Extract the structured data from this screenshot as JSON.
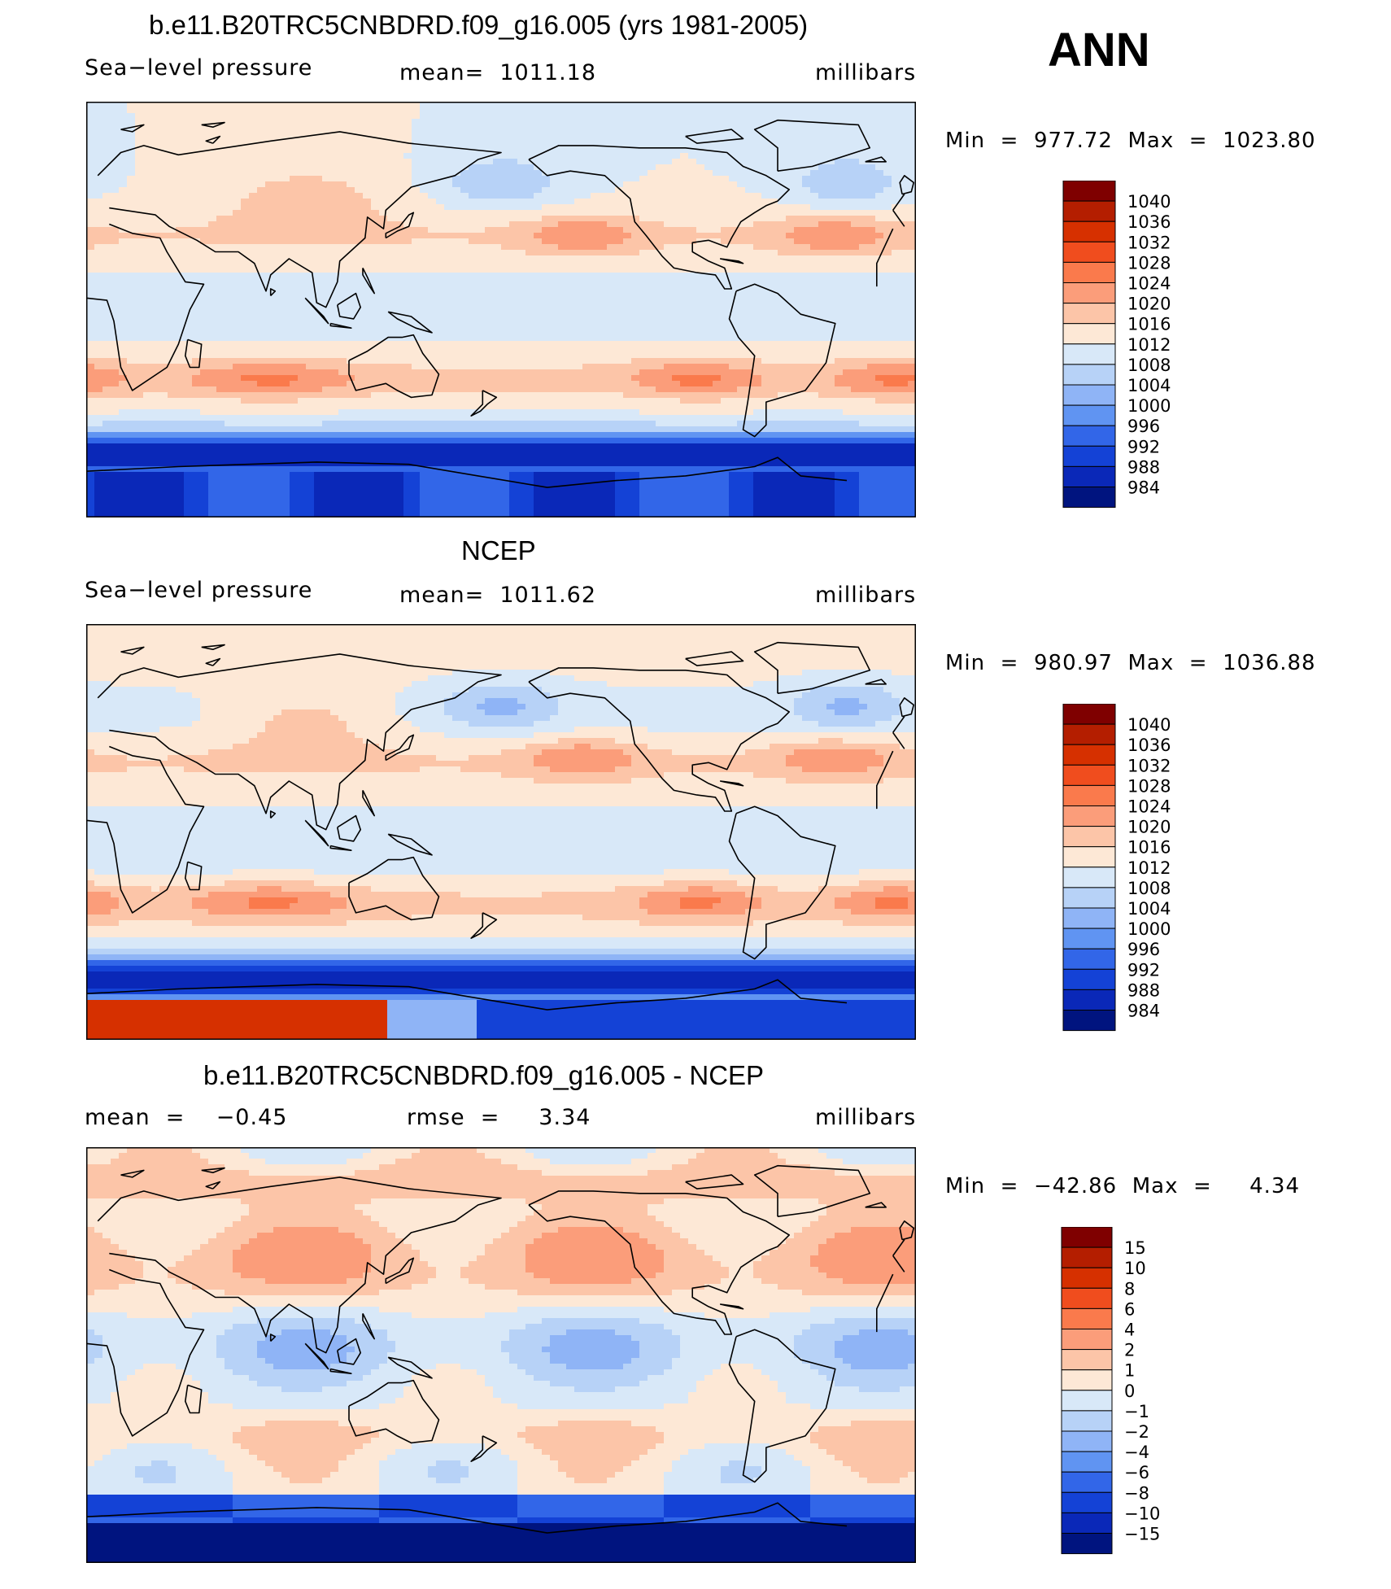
{
  "season": "ANN",
  "colors": {
    "coastline": "#000000",
    "frame": "#000000"
  },
  "panels": [
    {
      "id": "model",
      "title": "b.e11.B20TRC5CNBDRD.f09_g16.005 (yrs 1981-2005)",
      "left_label": "Sea−level pressure",
      "center_label": "mean=  1011.18",
      "right_label": "millibars",
      "minmax": "Min  =  977.72  Max  =  1023.80",
      "field": "model",
      "colorbar": "abs"
    },
    {
      "id": "obs",
      "title": "NCEP",
      "left_label": "Sea−level pressure",
      "center_label": "mean=  1011.62",
      "right_label": "millibars",
      "minmax": "Min  =  980.97  Max  =  1036.88",
      "field": "obs",
      "colorbar": "abs"
    },
    {
      "id": "diff",
      "title": "b.e11.B20TRC5CNBDRD.f09_g16.005 - NCEP",
      "left_label": "mean  =    −0.45",
      "center_label": "rmse  =     3.34",
      "right_label": "millibars",
      "minmax": "Min  =  −42.86  Max  =     4.34",
      "field": "diff",
      "colorbar": "diff"
    }
  ],
  "colorbars": {
    "abs": {
      "labels": [
        "1040",
        "1036",
        "1032",
        "1028",
        "1024",
        "1020",
        "1016",
        "1012",
        "1008",
        "1004",
        "1000",
        "996",
        "992",
        "988",
        "984"
      ],
      "colors": [
        "#7f0000",
        "#b41e00",
        "#d63000",
        "#f04d1e",
        "#fa7a4c",
        "#fb9d7a",
        "#fcc5a8",
        "#fde8d6",
        "#d8e8f8",
        "#b7d2f7",
        "#8fb4f6",
        "#6094f2",
        "#3266e8",
        "#1442d6",
        "#0a28b8",
        "#00147f"
      ]
    },
    "diff": {
      "labels": [
        "15",
        "10",
        "8",
        "6",
        "4",
        "2",
        "1",
        "0",
        "−1",
        "−2",
        "−4",
        "−6",
        "−8",
        "−10",
        "−15"
      ],
      "colors": [
        "#7f0000",
        "#b41e00",
        "#d63000",
        "#f04d1e",
        "#fa7a4c",
        "#fb9d7a",
        "#fcc5a8",
        "#fde8d6",
        "#d8e8f8",
        "#b7d2f7",
        "#8fb4f6",
        "#6094f2",
        "#3266e8",
        "#1442d6",
        "#0a28b8",
        "#00147f"
      ]
    }
  }
}
